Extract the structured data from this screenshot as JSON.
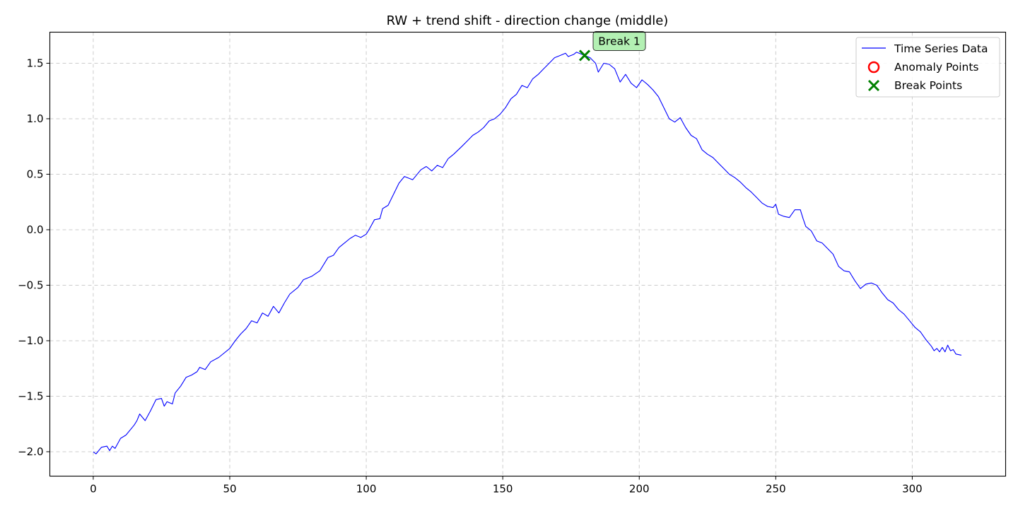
{
  "chart_data": {
    "type": "line",
    "title": "RW + trend shift - direction change (middle)",
    "xlabel": "",
    "ylabel": "",
    "xlim": [
      -15.9,
      334.2
    ],
    "ylim": [
      -2.22,
      1.78
    ],
    "xticks": [
      0,
      50,
      100,
      150,
      200,
      250,
      300
    ],
    "yticks": [
      -2.0,
      -1.5,
      -1.0,
      -0.5,
      0.0,
      0.5,
      1.0,
      1.5
    ],
    "xtick_labels": [
      "0",
      "50",
      "100",
      "150",
      "200",
      "250",
      "300"
    ],
    "ytick_labels": [
      "−2.0",
      "−1.5",
      "−1.0",
      "−0.5",
      "0.0",
      "0.5",
      "1.0",
      "1.5"
    ],
    "grid": true,
    "legend_position": "top-right",
    "colors": {
      "series": "#0000ff",
      "anomaly": "#ff0000",
      "break": "#008000",
      "annotation_fill": "#b3f0b3",
      "grid": "#cccccc"
    },
    "legend": [
      {
        "label": "Time Series Data",
        "marker": "line",
        "icon": "blue-line"
      },
      {
        "label": "Anomaly Points",
        "marker": "circle",
        "icon": "red-circle"
      },
      {
        "label": "Break Points",
        "marker": "x",
        "icon": "green-x"
      }
    ],
    "series": [
      {
        "name": "Time Series Data",
        "keypoints": [
          [
            0,
            -2.0
          ],
          [
            1,
            -2.02
          ],
          [
            3,
            -1.96
          ],
          [
            5,
            -1.95
          ],
          [
            6,
            -1.99
          ],
          [
            7,
            -1.95
          ],
          [
            8,
            -1.97
          ],
          [
            10,
            -1.88
          ],
          [
            12,
            -1.85
          ],
          [
            15,
            -1.76
          ],
          [
            16,
            -1.72
          ],
          [
            17,
            -1.66
          ],
          [
            19,
            -1.72
          ],
          [
            21,
            -1.63
          ],
          [
            23,
            -1.53
          ],
          [
            25,
            -1.52
          ],
          [
            26,
            -1.59
          ],
          [
            27,
            -1.55
          ],
          [
            29,
            -1.57
          ],
          [
            30,
            -1.47
          ],
          [
            32,
            -1.41
          ],
          [
            34,
            -1.33
          ],
          [
            36,
            -1.31
          ],
          [
            38,
            -1.28
          ],
          [
            39,
            -1.24
          ],
          [
            41,
            -1.26
          ],
          [
            43,
            -1.19
          ],
          [
            46,
            -1.15
          ],
          [
            50,
            -1.07
          ],
          [
            52,
            -1.0
          ],
          [
            54,
            -0.94
          ],
          [
            56,
            -0.89
          ],
          [
            58,
            -0.82
          ],
          [
            60,
            -0.84
          ],
          [
            62,
            -0.75
          ],
          [
            64,
            -0.78
          ],
          [
            66,
            -0.69
          ],
          [
            68,
            -0.75
          ],
          [
            70,
            -0.66
          ],
          [
            72,
            -0.58
          ],
          [
            75,
            -0.52
          ],
          [
            77,
            -0.45
          ],
          [
            80,
            -0.42
          ],
          [
            83,
            -0.37
          ],
          [
            86,
            -0.25
          ],
          [
            88,
            -0.23
          ],
          [
            90,
            -0.16
          ],
          [
            92,
            -0.12
          ],
          [
            94,
            -0.08
          ],
          [
            96,
            -0.05
          ],
          [
            98,
            -0.07
          ],
          [
            100,
            -0.04
          ],
          [
            101,
            0.0
          ],
          [
            103,
            0.09
          ],
          [
            105,
            0.1
          ],
          [
            106,
            0.19
          ],
          [
            108,
            0.22
          ],
          [
            110,
            0.32
          ],
          [
            112,
            0.42
          ],
          [
            114,
            0.48
          ],
          [
            117,
            0.45
          ],
          [
            120,
            0.54
          ],
          [
            122,
            0.57
          ],
          [
            124,
            0.53
          ],
          [
            126,
            0.58
          ],
          [
            128,
            0.56
          ],
          [
            130,
            0.64
          ],
          [
            132,
            0.68
          ],
          [
            135,
            0.75
          ],
          [
            137,
            0.8
          ],
          [
            139,
            0.85
          ],
          [
            141,
            0.88
          ],
          [
            143,
            0.92
          ],
          [
            145,
            0.98
          ],
          [
            147,
            1.0
          ],
          [
            149,
            1.04
          ],
          [
            151,
            1.1
          ],
          [
            153,
            1.18
          ],
          [
            155,
            1.22
          ],
          [
            157,
            1.3
          ],
          [
            159,
            1.28
          ],
          [
            161,
            1.36
          ],
          [
            163,
            1.4
          ],
          [
            165,
            1.45
          ],
          [
            167,
            1.5
          ],
          [
            169,
            1.55
          ],
          [
            171,
            1.57
          ],
          [
            173,
            1.59
          ],
          [
            174,
            1.56
          ],
          [
            176,
            1.58
          ],
          [
            177,
            1.6
          ],
          [
            179,
            1.58
          ],
          [
            180,
            1.57
          ],
          [
            182,
            1.55
          ],
          [
            184,
            1.5
          ],
          [
            185,
            1.42
          ],
          [
            187,
            1.5
          ],
          [
            189,
            1.49
          ],
          [
            191,
            1.45
          ],
          [
            193,
            1.33
          ],
          [
            195,
            1.4
          ],
          [
            197,
            1.32
          ],
          [
            199,
            1.28
          ],
          [
            201,
            1.35
          ],
          [
            203,
            1.31
          ],
          [
            205,
            1.26
          ],
          [
            207,
            1.2
          ],
          [
            209,
            1.1
          ],
          [
            211,
            1.0
          ],
          [
            213,
            0.97
          ],
          [
            215,
            1.01
          ],
          [
            217,
            0.92
          ],
          [
            219,
            0.85
          ],
          [
            221,
            0.82
          ],
          [
            223,
            0.72
          ],
          [
            225,
            0.68
          ],
          [
            227,
            0.65
          ],
          [
            229,
            0.6
          ],
          [
            231,
            0.55
          ],
          [
            233,
            0.5
          ],
          [
            235,
            0.47
          ],
          [
            237,
            0.43
          ],
          [
            239,
            0.38
          ],
          [
            241,
            0.34
          ],
          [
            243,
            0.29
          ],
          [
            245,
            0.24
          ],
          [
            247,
            0.21
          ],
          [
            249,
            0.2
          ],
          [
            250,
            0.23
          ],
          [
            251,
            0.14
          ],
          [
            253,
            0.12
          ],
          [
            255,
            0.11
          ],
          [
            257,
            0.18
          ],
          [
            259,
            0.18
          ],
          [
            260,
            0.1
          ],
          [
            261,
            0.03
          ],
          [
            263,
            -0.01
          ],
          [
            265,
            -0.1
          ],
          [
            267,
            -0.12
          ],
          [
            269,
            -0.17
          ],
          [
            271,
            -0.22
          ],
          [
            273,
            -0.33
          ],
          [
            275,
            -0.37
          ],
          [
            277,
            -0.38
          ],
          [
            279,
            -0.46
          ],
          [
            281,
            -0.53
          ],
          [
            283,
            -0.49
          ],
          [
            285,
            -0.48
          ],
          [
            287,
            -0.5
          ],
          [
            289,
            -0.57
          ],
          [
            291,
            -0.63
          ],
          [
            293,
            -0.66
          ],
          [
            295,
            -0.72
          ],
          [
            297,
            -0.76
          ],
          [
            299,
            -0.82
          ],
          [
            301,
            -0.88
          ],
          [
            303,
            -0.92
          ],
          [
            305,
            -0.99
          ],
          [
            307,
            -1.05
          ],
          [
            308,
            -1.09
          ],
          [
            309,
            -1.07
          ],
          [
            310,
            -1.1
          ],
          [
            311,
            -1.06
          ],
          [
            312,
            -1.1
          ],
          [
            313,
            -1.04
          ],
          [
            314,
            -1.09
          ],
          [
            315,
            -1.08
          ],
          [
            316,
            -1.12
          ],
          [
            318,
            -1.13
          ]
        ]
      }
    ],
    "anomaly_points": [],
    "break_points": [
      {
        "x": 180,
        "y": 1.57,
        "label": "Break 1"
      }
    ]
  }
}
